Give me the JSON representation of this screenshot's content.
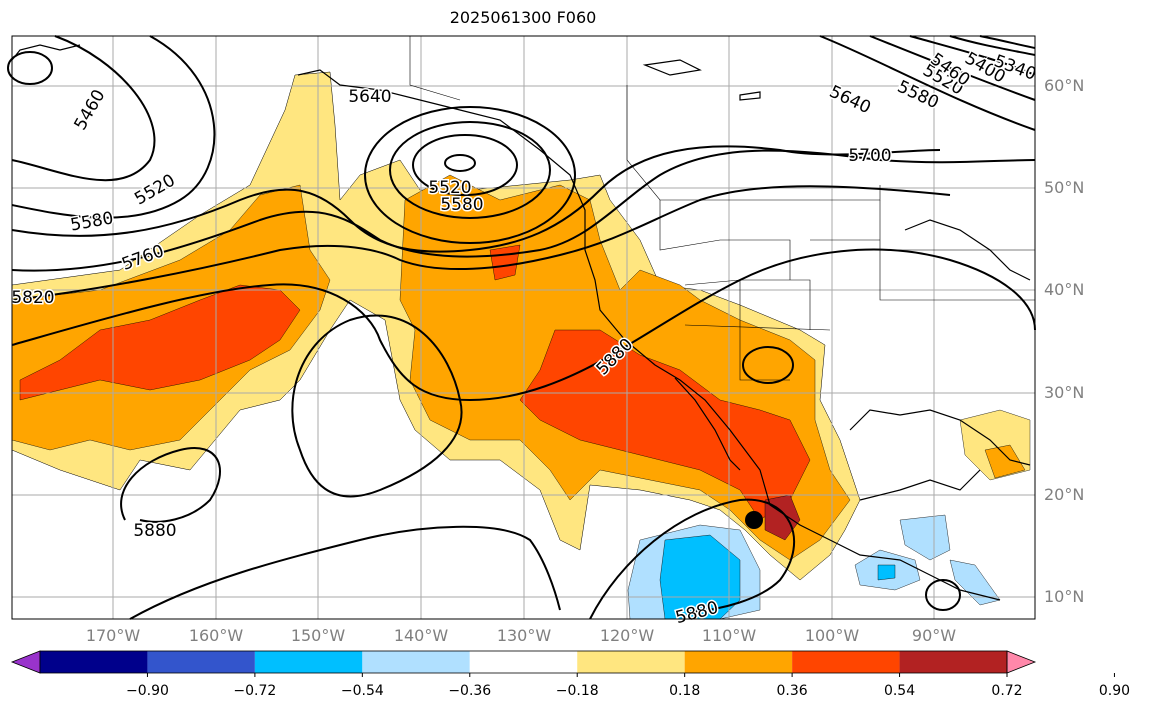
{
  "title": "2025061300 F060",
  "lat_labels": [
    "60°N",
    "50°N",
    "40°N",
    "30°N",
    "20°N",
    "10°N"
  ],
  "lon_labels": [
    "170°W",
    "160°W",
    "150°W",
    "140°W",
    "130°W",
    "120°W",
    "110°W",
    "100°W",
    "90°W"
  ],
  "contour_labels": [
    "5460",
    "5520",
    "5580",
    "5760",
    "5820",
    "5640",
    "5520",
    "5580",
    "5880",
    "5880",
    "5880",
    "5880",
    "5640",
    "5580",
    "5520",
    "5460",
    "5400",
    "5340",
    "5700"
  ],
  "colorbar": {
    "tick_labels": [
      "−0.90",
      "−0.72",
      "−0.54",
      "−0.36",
      "−0.18",
      "0.18",
      "0.36",
      "0.54",
      "0.72",
      "0.90"
    ],
    "colors": [
      "#9933cc",
      "#00008b",
      "#3355cc",
      "#00bfff",
      "#b0e0ff",
      "#ffffff",
      "#ffe680",
      "#ffa500",
      "#ff4500",
      "#b22222",
      "#ff88aa"
    ]
  }
}
